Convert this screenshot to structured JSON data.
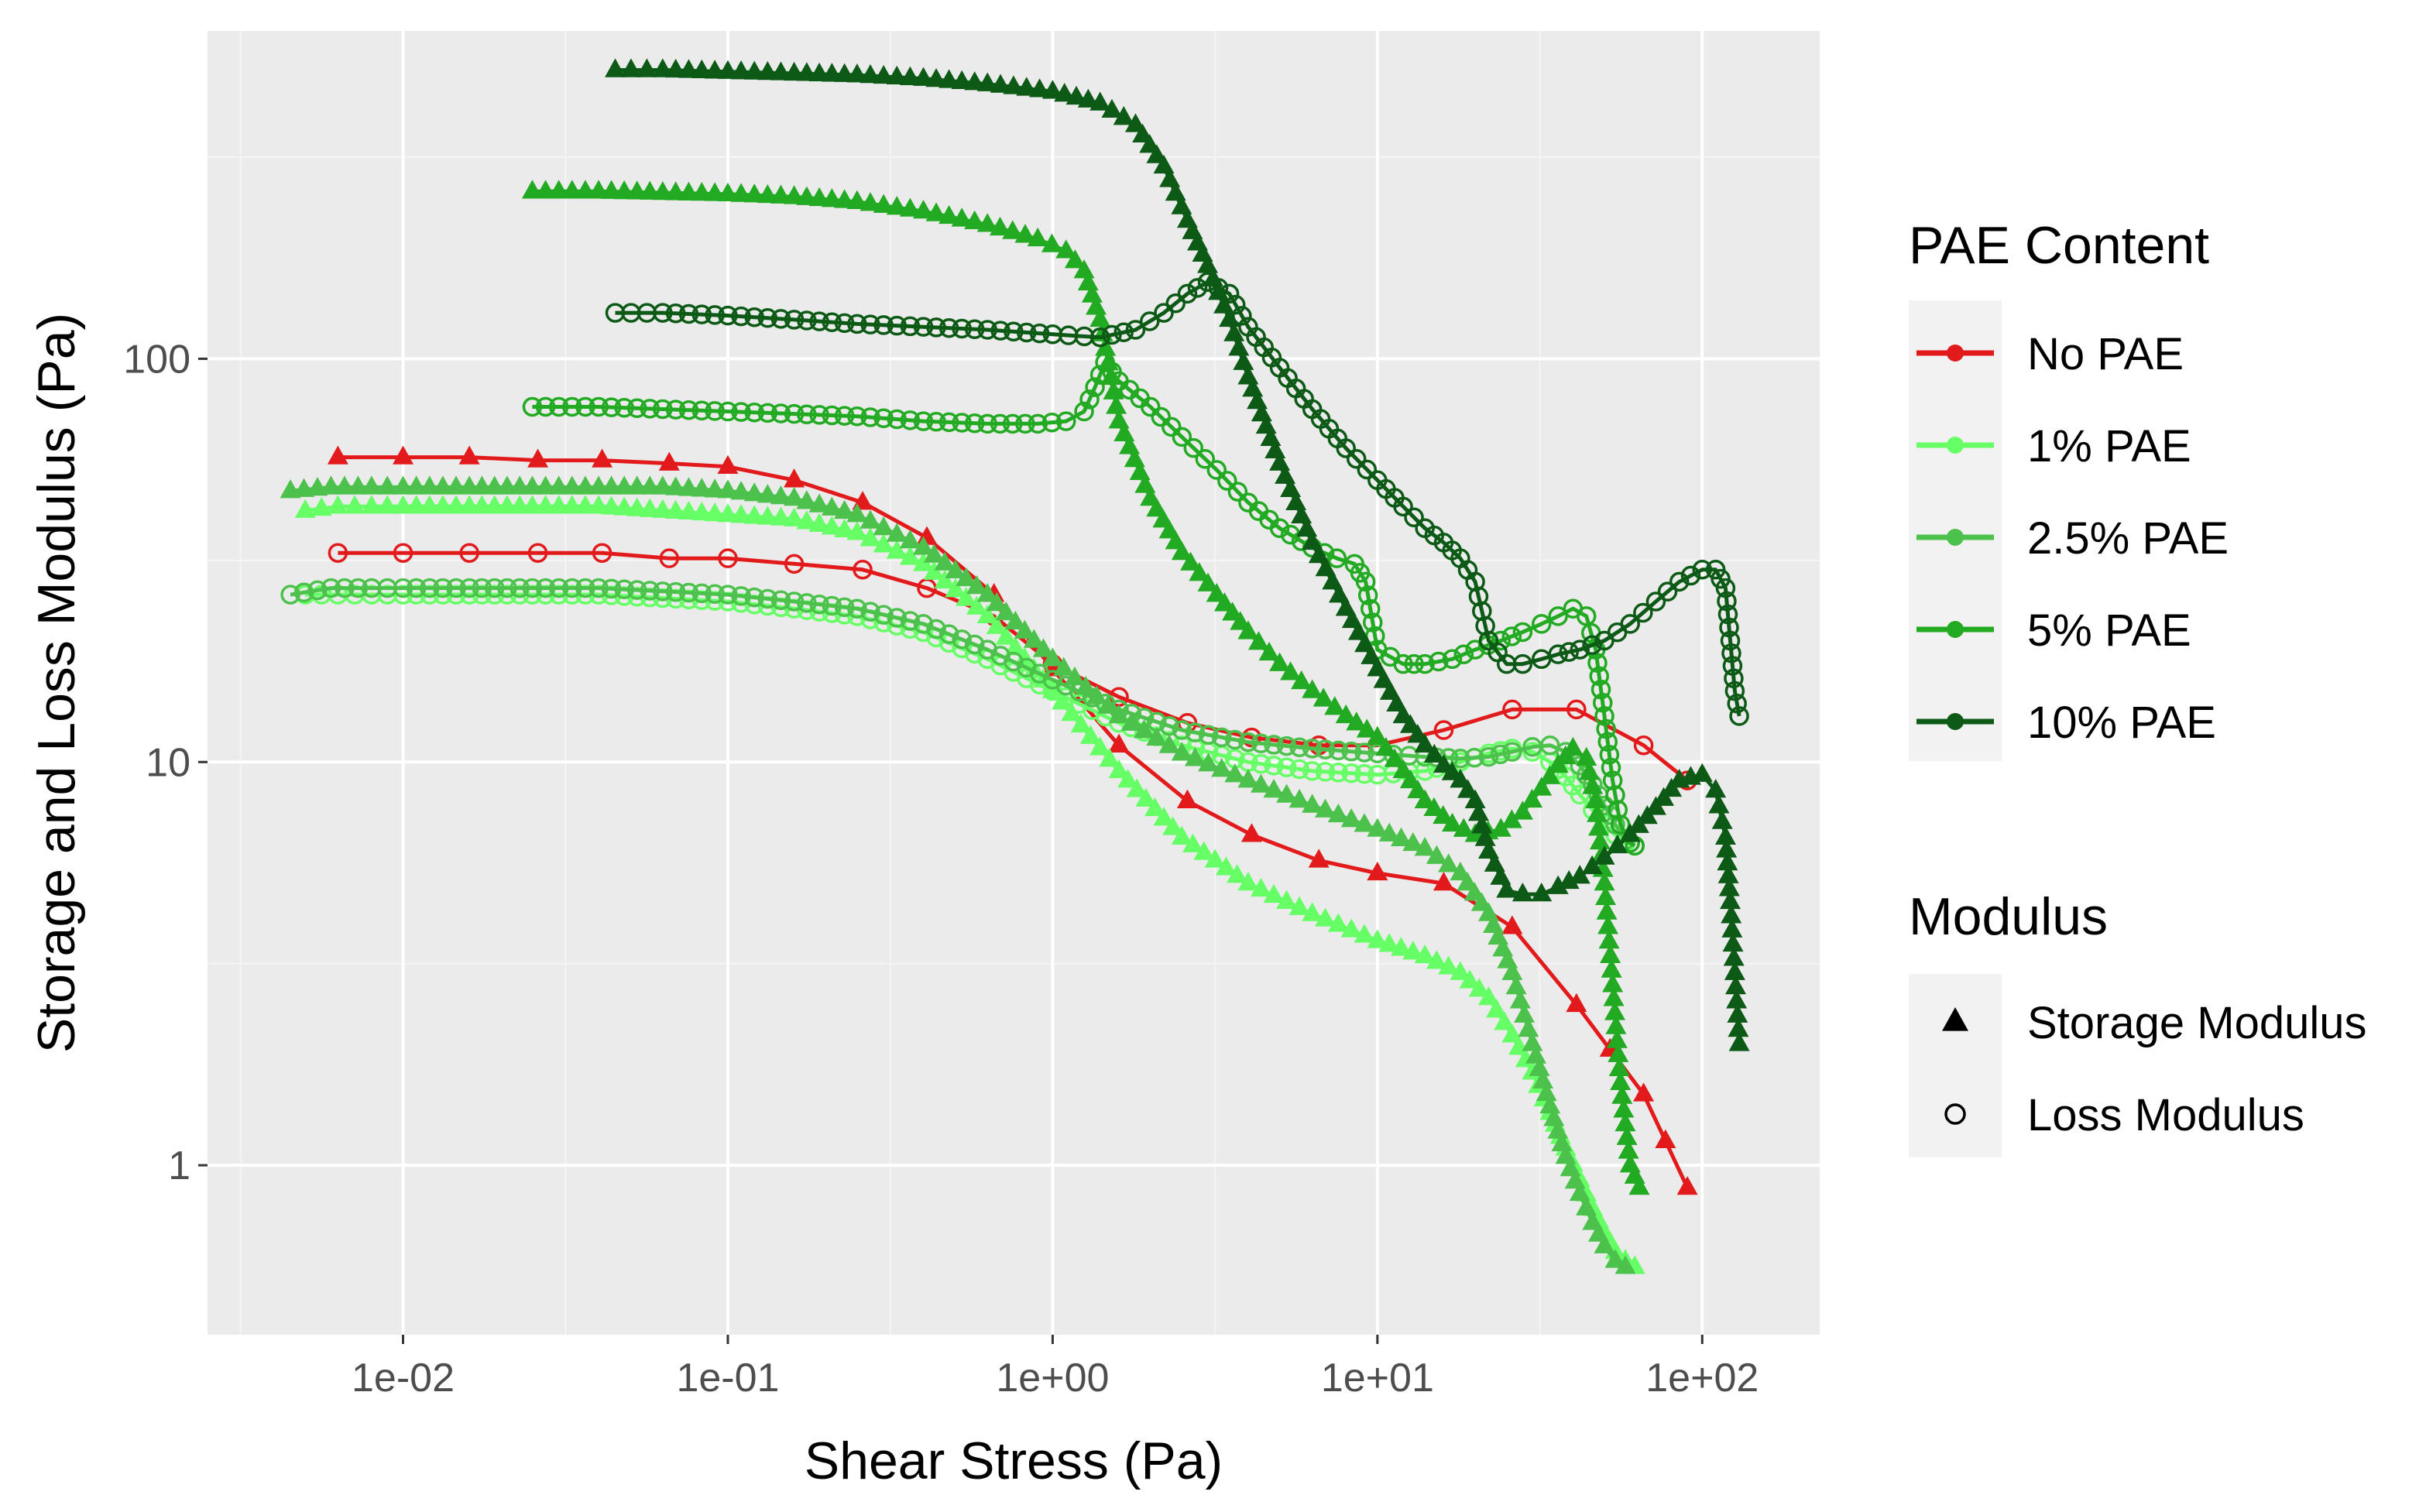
{
  "chart_data": {
    "type": "line",
    "title": "",
    "xlabel": "Shear Stress (Pa)",
    "ylabel": "Storage and Loss Modulus (Pa)",
    "xscale": "log10",
    "yscale": "log10",
    "xlim": [
      0.0025,
      230
    ],
    "ylim": [
      0.38,
      650
    ],
    "x_ticks": [
      {
        "value": 0.01,
        "label": "1e-02"
      },
      {
        "value": 0.1,
        "label": "1e-01"
      },
      {
        "value": 1,
        "label": "1e+00"
      },
      {
        "value": 10,
        "label": "1e+01"
      },
      {
        "value": 100,
        "label": "1e+02"
      }
    ],
    "y_ticks": [
      {
        "value": 1,
        "label": "1"
      },
      {
        "value": 10,
        "label": "10"
      },
      {
        "value": 100,
        "label": "100"
      }
    ],
    "legend_color": {
      "title": "PAE Content",
      "entries": [
        {
          "key": "none",
          "label": "No PAE",
          "color": "#e31a1c"
        },
        {
          "key": "p1",
          "label": "1% PAE",
          "color": "#66ff66"
        },
        {
          "key": "p25",
          "label": "2.5% PAE",
          "color": "#4cc24c"
        },
        {
          "key": "p5",
          "label": "5% PAE",
          "color": "#22aa22"
        },
        {
          "key": "p10",
          "label": "10% PAE",
          "color": "#0c5a16"
        }
      ]
    },
    "legend_shape": {
      "title": "Modulus",
      "entries": [
        {
          "key": "storage",
          "label": "Storage Modulus",
          "shape": "triangle"
        },
        {
          "key": "loss",
          "label": "Loss Modulus",
          "shape": "open-circle"
        }
      ]
    },
    "series": [
      {
        "group": "none",
        "modulus": "storage",
        "marker_every": 1,
        "x": [
          0.0063,
          0.01,
          0.016,
          0.026,
          0.041,
          0.066,
          0.1,
          0.16,
          0.26,
          0.41,
          0.66,
          1.0,
          1.6,
          2.6,
          4.1,
          6.6,
          10,
          16,
          26,
          41,
          66,
          90
        ],
        "y": [
          57,
          57,
          57,
          56,
          56,
          55,
          54,
          50,
          44,
          36,
          26,
          17,
          11,
          8.0,
          6.6,
          5.7,
          5.3,
          5.0,
          3.9,
          2.5,
          1.5,
          0.88
        ]
      },
      {
        "group": "none",
        "modulus": "loss",
        "marker_every": 1,
        "x": [
          0.0063,
          0.01,
          0.016,
          0.026,
          0.041,
          0.066,
          0.1,
          0.16,
          0.26,
          0.41,
          0.66,
          1.0,
          1.6,
          2.6,
          4.1,
          6.6,
          10,
          16,
          26,
          41,
          66,
          90
        ],
        "y": [
          33,
          33,
          33,
          33,
          33,
          32,
          32,
          31,
          30,
          27,
          23,
          17.5,
          14.5,
          12.5,
          11.5,
          11,
          11,
          12,
          13.5,
          13.5,
          11,
          9
        ]
      },
      {
        "group": "p1",
        "modulus": "storage",
        "marker_every": 1,
        "x": [
          0.005,
          0.0063,
          0.008,
          0.01,
          0.016,
          0.025,
          0.04,
          0.063,
          0.1,
          0.16,
          0.25,
          0.4,
          0.63,
          1.0,
          1.6,
          2.5,
          4,
          6.3,
          10,
          14,
          18,
          22,
          26,
          30,
          34,
          38,
          42,
          46,
          50,
          54,
          58,
          62
        ],
        "y": [
          42,
          43,
          43,
          43,
          43,
          43,
          43,
          42,
          41,
          40,
          37,
          31,
          23,
          15,
          9.5,
          6.5,
          5.0,
          4.2,
          3.6,
          3.3,
          3.0,
          2.6,
          2.1,
          1.7,
          1.35,
          1.1,
          0.92,
          0.78,
          0.68,
          0.61,
          0.58,
          0.56
        ]
      },
      {
        "group": "p1",
        "modulus": "loss",
        "marker_every": 1,
        "x": [
          0.005,
          0.0063,
          0.008,
          0.01,
          0.016,
          0.025,
          0.04,
          0.063,
          0.1,
          0.16,
          0.25,
          0.4,
          0.63,
          1.0,
          1.6,
          2.5,
          4,
          6.3,
          10,
          14,
          18,
          22,
          26,
          30,
          34,
          38,
          42,
          46,
          50,
          54,
          58,
          62
        ],
        "y": [
          26,
          26,
          26,
          26,
          26,
          26,
          26,
          25.5,
          25,
          24,
          23,
          21,
          18,
          15,
          12.5,
          11,
          10,
          9.5,
          9.3,
          9.5,
          10,
          10.5,
          10.8,
          10.6,
          10,
          9.2,
          8.3,
          7.6,
          7.0,
          6.6,
          6.3,
          6.2
        ]
      },
      {
        "group": "p25",
        "modulus": "storage",
        "marker_every": 1,
        "x": [
          0.0045,
          0.006,
          0.008,
          0.01,
          0.016,
          0.025,
          0.04,
          0.063,
          0.1,
          0.16,
          0.25,
          0.4,
          0.63,
          1.0,
          1.6,
          2.5,
          4,
          6.3,
          10,
          14,
          18,
          22,
          26,
          30,
          34,
          38,
          42,
          46,
          50,
          54,
          58
        ],
        "y": [
          47,
          48,
          48,
          48,
          48,
          48,
          48,
          48,
          47,
          45,
          41,
          34,
          26,
          18,
          13,
          10.5,
          9,
          7.8,
          6.8,
          6.1,
          5.3,
          4.2,
          3.0,
          2.0,
          1.4,
          1.05,
          0.85,
          0.72,
          0.63,
          0.58,
          0.56
        ]
      },
      {
        "group": "p25",
        "modulus": "loss",
        "marker_every": 1,
        "x": [
          0.0045,
          0.006,
          0.008,
          0.01,
          0.016,
          0.025,
          0.04,
          0.063,
          0.1,
          0.16,
          0.25,
          0.4,
          0.63,
          1.0,
          1.6,
          2.5,
          4,
          6.3,
          10,
          14,
          18,
          22,
          26,
          30,
          34,
          38,
          42,
          46,
          50,
          54,
          58,
          62
        ],
        "y": [
          26,
          27,
          27,
          27,
          27,
          27,
          27,
          26.5,
          26,
          25,
          24,
          22,
          19,
          16,
          13.5,
          12,
          11.2,
          10.8,
          10.5,
          10.3,
          10.2,
          10.3,
          10.6,
          10.9,
          11,
          10.6,
          9.8,
          8.8,
          7.8,
          7.0,
          6.4,
          6.2
        ]
      },
      {
        "group": "p5",
        "modulus": "storage",
        "marker_every": 1,
        "x": [
          0.025,
          0.04,
          0.063,
          0.1,
          0.16,
          0.25,
          0.4,
          0.63,
          0.9,
          1.1,
          1.25,
          1.4,
          1.6,
          2.0,
          2.5,
          3.2,
          4,
          5,
          6.3,
          8,
          10,
          12,
          14,
          17,
          20,
          24,
          28,
          32,
          36,
          40,
          44,
          47,
          50,
          53,
          56,
          60,
          64
        ],
        "y": [
          260,
          260,
          258,
          256,
          252,
          245,
          232,
          215,
          198,
          185,
          165,
          125,
          70,
          45,
          33,
          26,
          21,
          17.5,
          15,
          13,
          11.5,
          9.5,
          8,
          7,
          6.6,
          6.8,
          7.5,
          8.6,
          9.8,
          10.8,
          10.2,
          8,
          5,
          2.8,
          1.6,
          1.0,
          0.88
        ]
      },
      {
        "group": "p5",
        "modulus": "loss",
        "marker_every": 1,
        "x": [
          0.025,
          0.04,
          0.063,
          0.1,
          0.16,
          0.25,
          0.4,
          0.63,
          0.9,
          1.1,
          1.25,
          1.35,
          1.45,
          1.6,
          2.0,
          2.5,
          3.2,
          4,
          5,
          6.3,
          7.5,
          8.5,
          9.2,
          10,
          12,
          14,
          17,
          20,
          24,
          28,
          32,
          36,
          40,
          44,
          47,
          50,
          53,
          56,
          60,
          62
        ],
        "y": [
          76,
          76,
          75,
          74,
          73,
          72,
          70,
          69,
          69,
          70,
          74,
          85,
          98,
          88,
          76,
          64,
          53,
          44,
          38,
          34,
          32,
          31,
          28,
          19,
          17.5,
          17.5,
          18,
          19,
          20,
          21,
          22,
          23,
          24,
          23,
          19,
          13,
          9,
          7,
          6.3,
          6.2
        ]
      },
      {
        "group": "p10",
        "modulus": "storage",
        "marker_every": 1,
        "x": [
          0.045,
          0.063,
          0.1,
          0.16,
          0.25,
          0.4,
          0.63,
          1.0,
          1.4,
          1.8,
          2.2,
          2.6,
          3.0,
          3.5,
          4.0,
          5.0,
          6.3,
          8,
          10,
          12,
          14,
          16,
          18,
          20,
          22,
          25,
          28,
          32,
          36,
          42,
          50,
          60,
          72,
          85,
          100,
          110,
          118,
          122,
          126,
          130
        ],
        "y": [
          520,
          520,
          515,
          510,
          505,
          495,
          480,
          460,
          430,
          380,
          300,
          220,
          170,
          125,
          90,
          55,
          35,
          24,
          17,
          13,
          11,
          9.8,
          9.0,
          8.0,
          6.0,
          4.8,
          4.7,
          4.7,
          4.9,
          5.2,
          5.8,
          6.6,
          7.7,
          9.0,
          9.3,
          8.5,
          6.5,
          4.5,
          3.0,
          2.0
        ]
      },
      {
        "group": "p10",
        "modulus": "loss",
        "marker_every": 1,
        "x": [
          0.045,
          0.063,
          0.1,
          0.16,
          0.25,
          0.4,
          0.63,
          1.0,
          1.4,
          1.8,
          2.2,
          2.6,
          3.0,
          3.5,
          4.0,
          5.0,
          6.3,
          8,
          10,
          12,
          14,
          16,
          18,
          20,
          22,
          25,
          28,
          32,
          36,
          42,
          50,
          60,
          72,
          85,
          100,
          110,
          118,
          122,
          126,
          130
        ],
        "y": [
          130,
          130,
          128,
          125,
          122,
          120,
          118,
          115,
          113,
          118,
          130,
          145,
          155,
          145,
          120,
          95,
          75,
          60,
          50,
          43,
          38,
          35,
          32,
          28,
          20,
          17.5,
          17.5,
          18,
          18.5,
          19,
          20,
          22,
          25,
          28,
          30,
          30,
          27,
          20,
          15,
          13
        ]
      }
    ]
  }
}
